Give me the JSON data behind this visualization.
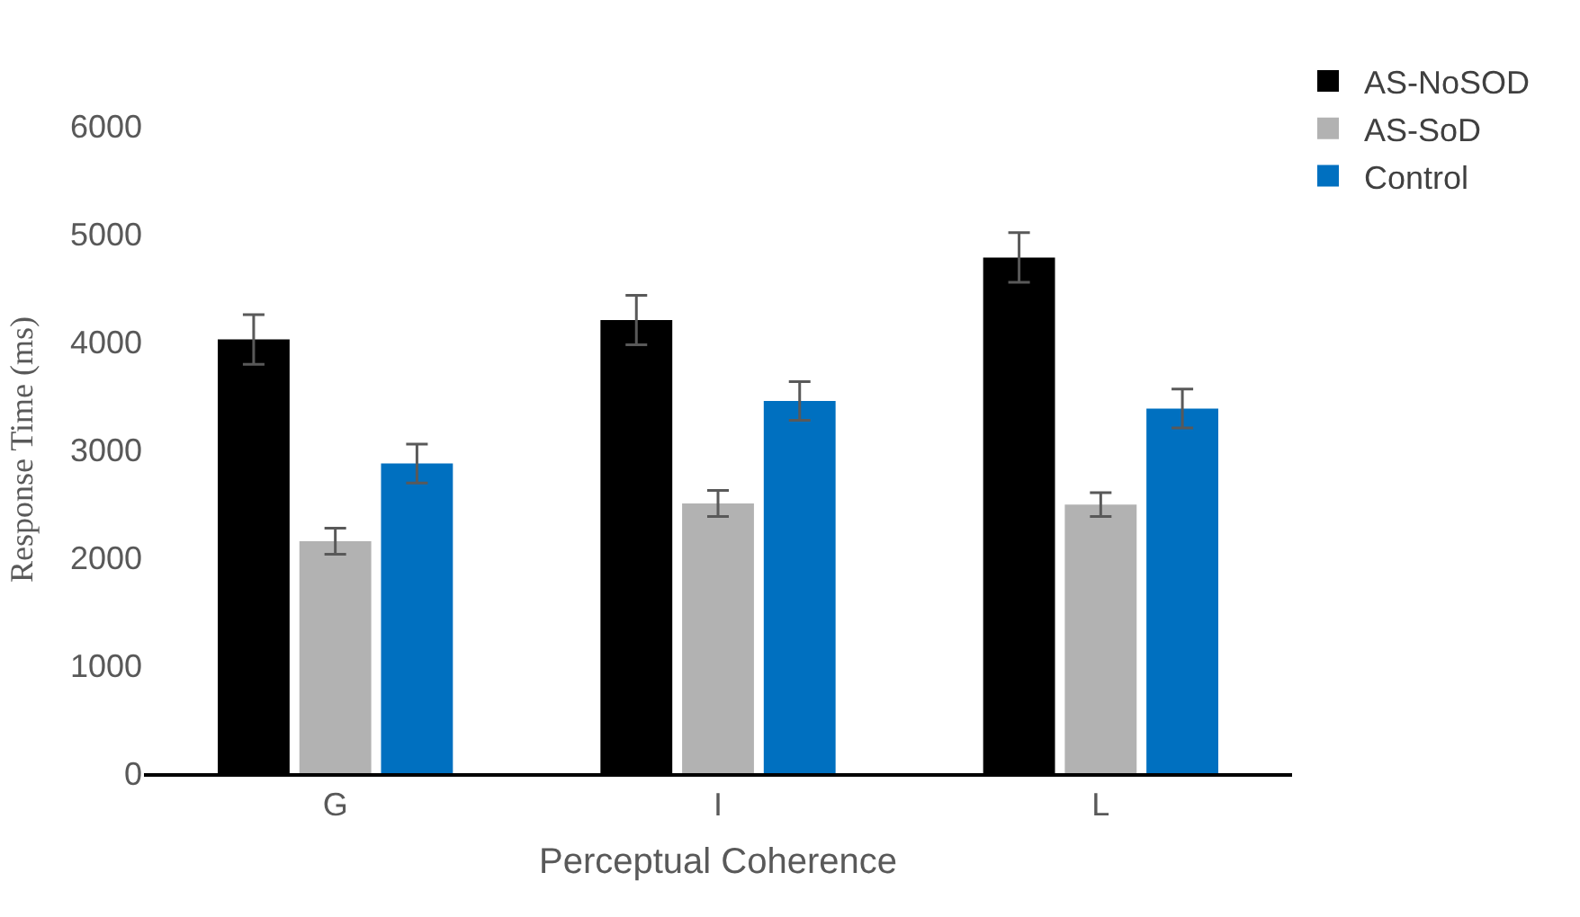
{
  "chart_data": {
    "type": "bar",
    "xlabel": "Perceptual Coherence",
    "ylabel": "Response Time (ms)",
    "categories": [
      "G",
      "I",
      "L"
    ],
    "series": [
      {
        "name": "AS-NoSOD",
        "color": "#000000",
        "values": [
          4020,
          4200,
          4780
        ],
        "errors": [
          230,
          230,
          230
        ]
      },
      {
        "name": "AS-SoD",
        "color": "#b2b2b2",
        "values": [
          2150,
          2500,
          2490
        ],
        "errors": [
          120,
          120,
          110
        ]
      },
      {
        "name": "Control",
        "color": "#0070c0",
        "values": [
          2870,
          3450,
          3380
        ],
        "errors": [
          180,
          180,
          180
        ]
      }
    ],
    "ylim": [
      0,
      6000
    ],
    "yticks": [
      0,
      1000,
      2000,
      3000,
      4000,
      5000,
      6000
    ],
    "legend": "top right"
  }
}
